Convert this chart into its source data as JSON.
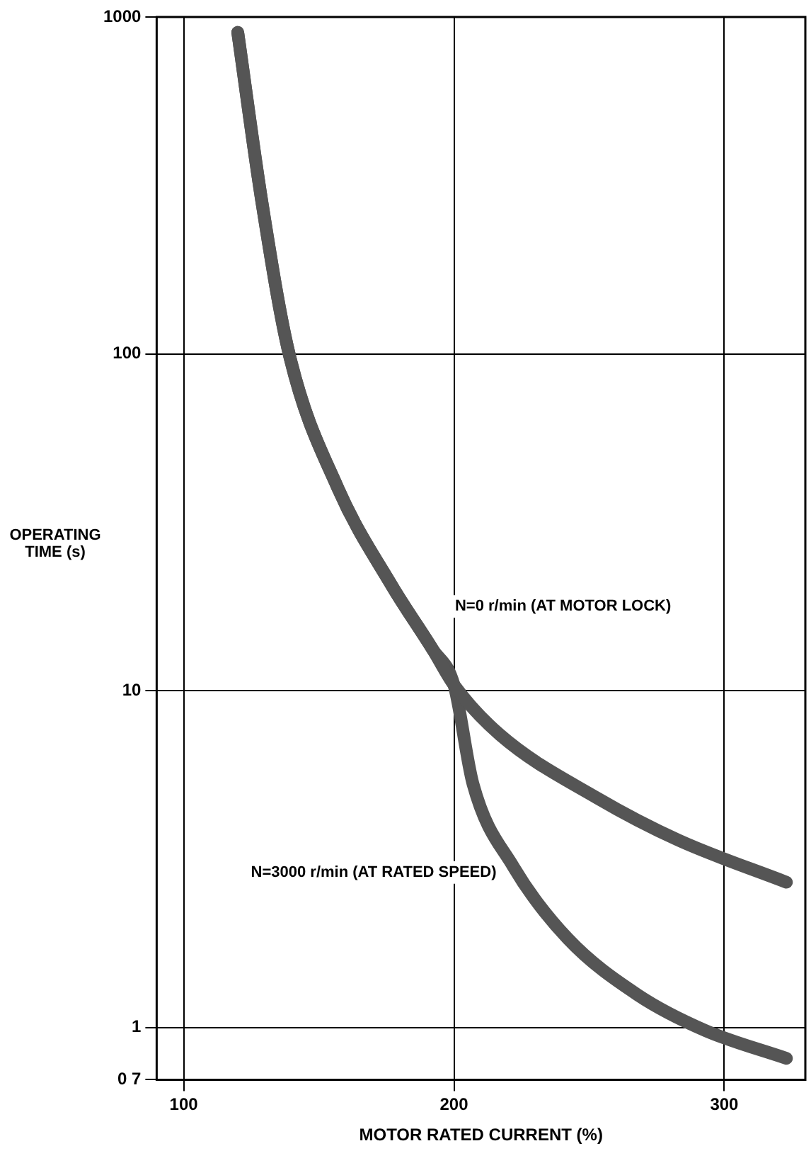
{
  "chart_data": {
    "type": "line",
    "xlabel": "MOTOR RATED CURRENT (%)",
    "ylabel": "OPERATING TIME (s)",
    "xlim": [
      90,
      330
    ],
    "xticks": [
      100,
      200,
      300
    ],
    "ylim": [
      0.7,
      1000
    ],
    "yticks": [
      {
        "value": 0.7,
        "label": "0 7"
      },
      1,
      10,
      100,
      1000
    ],
    "log": "y",
    "grid": true,
    "legend": false,
    "marker": "none",
    "line_style": "solid",
    "series": [
      {
        "name": "N=0 r/min (AT MOTOR LOCK)",
        "color": "#555555",
        "x": [
          120,
          129,
          139,
          157,
          177,
          192,
          200,
          217,
          253,
          283,
          323
        ],
        "values": [
          900,
          280,
          100,
          40,
          20.5,
          13.3,
          10.4,
          7.4,
          4.8,
          3.6,
          2.7
        ]
      },
      {
        "name": "N=3000 r/min (AT RATED SPEED)",
        "color": "#555555",
        "x": [
          120,
          129,
          139,
          157,
          177,
          192,
          200,
          207,
          222,
          242,
          268,
          293,
          323
        ],
        "values": [
          900,
          280,
          100,
          40,
          20.5,
          13.3,
          10.4,
          5.3,
          3.0,
          1.84,
          1.25,
          0.98,
          0.81
        ]
      }
    ]
  }
}
